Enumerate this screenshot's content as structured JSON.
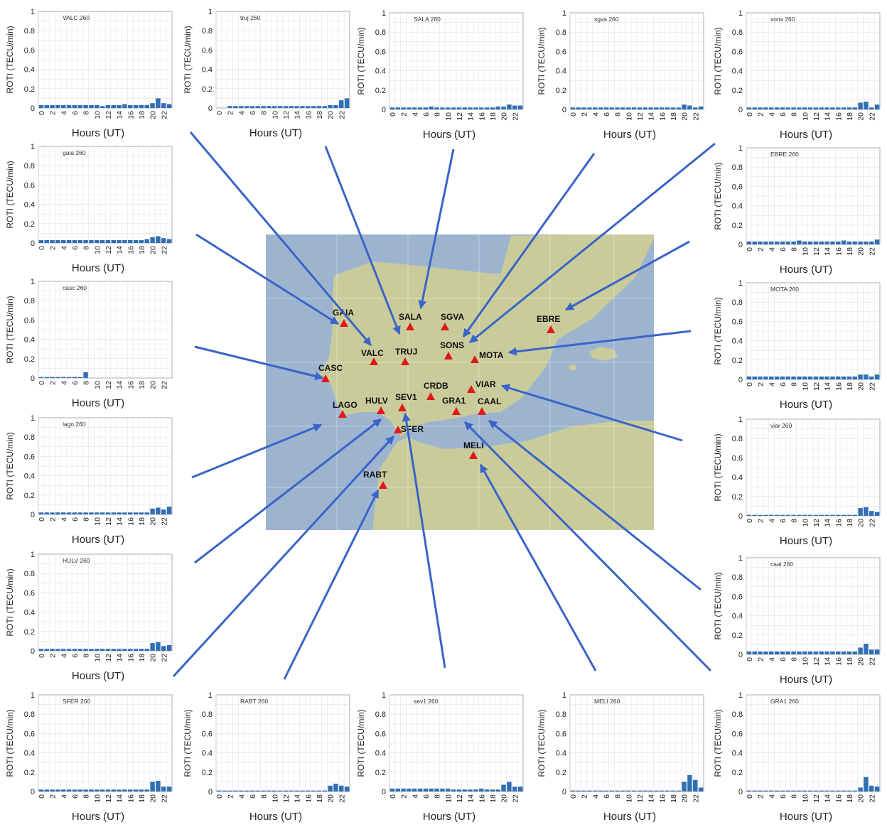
{
  "common": {
    "y_axis_label": "ROTI (TECU/min)",
    "x_axis_label": "Hours (UT)",
    "y_ticks": [
      "0",
      "0.2",
      "0.4",
      "0.6",
      "0.8",
      "1"
    ],
    "x_ticks": [
      "0",
      "2",
      "4",
      "6",
      "8",
      "10",
      "12",
      "14",
      "16",
      "18",
      "20",
      "22"
    ],
    "bar_color": "#2f6fb5"
  },
  "map": {
    "sea_color": "#9db4cf",
    "land_color": "#c9cc9a",
    "marker_color": "#e11919",
    "stations": [
      {
        "code": "GAIA"
      },
      {
        "code": "SALA"
      },
      {
        "code": "SGVA"
      },
      {
        "code": "EBRE"
      },
      {
        "code": "VALC"
      },
      {
        "code": "TRUJ"
      },
      {
        "code": "SONS"
      },
      {
        "code": "MOTA"
      },
      {
        "code": "CASC"
      },
      {
        "code": "CRDB"
      },
      {
        "code": "VIAR"
      },
      {
        "code": "LAGO"
      },
      {
        "code": "HULV"
      },
      {
        "code": "SEV1"
      },
      {
        "code": "GRA1"
      },
      {
        "code": "CAAL"
      },
      {
        "code": "SFER"
      },
      {
        "code": "MELI"
      },
      {
        "code": "RABT"
      }
    ]
  },
  "chart_data": [
    {
      "type": "bar",
      "title": "VALC 260",
      "ylim": [
        0,
        1
      ],
      "xlim": [
        0,
        23
      ],
      "x": [
        0,
        1,
        2,
        3,
        4,
        5,
        6,
        7,
        8,
        9,
        10,
        11,
        12,
        13,
        14,
        15,
        16,
        17,
        18,
        19,
        20,
        21,
        22,
        23
      ],
      "values": [
        0.03,
        0.03,
        0.03,
        0.03,
        0.03,
        0.03,
        0.03,
        0.03,
        0.03,
        0.03,
        0.03,
        0.02,
        0.03,
        0.03,
        0.03,
        0.04,
        0.03,
        0.03,
        0.03,
        0.03,
        0.05,
        0.1,
        0.05,
        0.04
      ]
    },
    {
      "type": "bar",
      "title": "truj 260",
      "ylim": [
        0,
        1
      ],
      "xlim": [
        0,
        23
      ],
      "x": [
        0,
        1,
        2,
        3,
        4,
        5,
        6,
        7,
        8,
        9,
        10,
        11,
        12,
        13,
        14,
        15,
        16,
        17,
        18,
        19,
        20,
        21,
        22,
        23
      ],
      "values": [
        0.0,
        0.0,
        0.02,
        0.02,
        0.02,
        0.02,
        0.02,
        0.02,
        0.02,
        0.02,
        0.02,
        0.02,
        0.02,
        0.02,
        0.02,
        0.02,
        0.02,
        0.02,
        0.02,
        0.02,
        0.03,
        0.03,
        0.08,
        0.1
      ]
    },
    {
      "type": "bar",
      "title": "SALA 260",
      "ylim": [
        0,
        1
      ],
      "xlim": [
        0,
        23
      ],
      "x": [
        0,
        1,
        2,
        3,
        4,
        5,
        6,
        7,
        8,
        9,
        10,
        11,
        12,
        13,
        14,
        15,
        16,
        17,
        18,
        19,
        20,
        21,
        22,
        23
      ],
      "values": [
        0.02,
        0.02,
        0.02,
        0.02,
        0.02,
        0.02,
        0.02,
        0.03,
        0.02,
        0.02,
        0.02,
        0.02,
        0.02,
        0.02,
        0.02,
        0.02,
        0.02,
        0.02,
        0.02,
        0.03,
        0.03,
        0.05,
        0.04,
        0.04
      ]
    },
    {
      "type": "bar",
      "title": "sgva 260",
      "ylim": [
        0,
        1
      ],
      "xlim": [
        0,
        23
      ],
      "x": [
        0,
        1,
        2,
        3,
        4,
        5,
        6,
        7,
        8,
        9,
        10,
        11,
        12,
        13,
        14,
        15,
        16,
        17,
        18,
        19,
        20,
        21,
        22,
        23
      ],
      "values": [
        0.02,
        0.02,
        0.02,
        0.02,
        0.02,
        0.02,
        0.02,
        0.02,
        0.02,
        0.02,
        0.02,
        0.02,
        0.02,
        0.02,
        0.02,
        0.02,
        0.02,
        0.02,
        0.02,
        0.02,
        0.05,
        0.04,
        0.02,
        0.03
      ]
    },
    {
      "type": "bar",
      "title": "sons 260",
      "ylim": [
        0,
        1
      ],
      "xlim": [
        0,
        23
      ],
      "x": [
        0,
        1,
        2,
        3,
        4,
        5,
        6,
        7,
        8,
        9,
        10,
        11,
        12,
        13,
        14,
        15,
        16,
        17,
        18,
        19,
        20,
        21,
        22,
        23
      ],
      "values": [
        0.02,
        0.02,
        0.02,
        0.02,
        0.02,
        0.02,
        0.02,
        0.02,
        0.02,
        0.02,
        0.02,
        0.02,
        0.02,
        0.02,
        0.02,
        0.02,
        0.02,
        0.02,
        0.02,
        0.02,
        0.07,
        0.08,
        0.02,
        0.05
      ]
    },
    {
      "type": "bar",
      "title": "gaia 260",
      "ylim": [
        0,
        1
      ],
      "xlim": [
        0,
        23
      ],
      "x": [
        0,
        1,
        2,
        3,
        4,
        5,
        6,
        7,
        8,
        9,
        10,
        11,
        12,
        13,
        14,
        15,
        16,
        17,
        18,
        19,
        20,
        21,
        22,
        23
      ],
      "values": [
        0.03,
        0.03,
        0.03,
        0.03,
        0.03,
        0.03,
        0.03,
        0.03,
        0.03,
        0.03,
        0.03,
        0.03,
        0.03,
        0.03,
        0.03,
        0.03,
        0.03,
        0.03,
        0.03,
        0.04,
        0.06,
        0.07,
        0.05,
        0.04
      ]
    },
    {
      "type": "bar",
      "title": "EBRE 260",
      "ylim": [
        0,
        1
      ],
      "xlim": [
        0,
        23
      ],
      "x": [
        0,
        1,
        2,
        3,
        4,
        5,
        6,
        7,
        8,
        9,
        10,
        11,
        12,
        13,
        14,
        15,
        16,
        17,
        18,
        19,
        20,
        21,
        22,
        23
      ],
      "values": [
        0.03,
        0.03,
        0.03,
        0.03,
        0.03,
        0.03,
        0.03,
        0.03,
        0.03,
        0.04,
        0.03,
        0.03,
        0.03,
        0.03,
        0.03,
        0.03,
        0.03,
        0.04,
        0.03,
        0.03,
        0.03,
        0.03,
        0.03,
        0.05
      ]
    },
    {
      "type": "bar",
      "title": "casc 260",
      "ylim": [
        0,
        1
      ],
      "xlim": [
        0,
        23
      ],
      "x": [
        0,
        1,
        2,
        3,
        4,
        5,
        6,
        7,
        8
      ],
      "values": [
        0.01,
        0.01,
        0.01,
        0.01,
        0.01,
        0.01,
        0.01,
        0.01,
        0.06
      ]
    },
    {
      "type": "bar",
      "title": "MOTA 260",
      "ylim": [
        0,
        1
      ],
      "xlim": [
        0,
        23
      ],
      "x": [
        0,
        1,
        2,
        3,
        4,
        5,
        6,
        7,
        8,
        9,
        10,
        11,
        12,
        13,
        14,
        15,
        16,
        17,
        18,
        19,
        20,
        21,
        22,
        23
      ],
      "values": [
        0.03,
        0.03,
        0.03,
        0.03,
        0.03,
        0.03,
        0.03,
        0.03,
        0.03,
        0.03,
        0.03,
        0.03,
        0.03,
        0.03,
        0.03,
        0.03,
        0.03,
        0.03,
        0.03,
        0.03,
        0.05,
        0.05,
        0.03,
        0.05
      ]
    },
    {
      "type": "bar",
      "title": "lago 260",
      "ylim": [
        0,
        1
      ],
      "xlim": [
        0,
        23
      ],
      "x": [
        0,
        1,
        2,
        3,
        4,
        5,
        6,
        7,
        8,
        9,
        10,
        11,
        12,
        13,
        14,
        15,
        16,
        17,
        18,
        19,
        20,
        21,
        22,
        23
      ],
      "values": [
        0.02,
        0.02,
        0.02,
        0.02,
        0.02,
        0.02,
        0.02,
        0.02,
        0.02,
        0.02,
        0.02,
        0.02,
        0.02,
        0.02,
        0.02,
        0.02,
        0.02,
        0.02,
        0.02,
        0.02,
        0.06,
        0.07,
        0.05,
        0.08
      ]
    },
    {
      "type": "bar",
      "title": "viar 260",
      "ylim": [
        0,
        1
      ],
      "xlim": [
        0,
        23
      ],
      "x": [
        0,
        1,
        2,
        3,
        4,
        5,
        6,
        7,
        8,
        9,
        10,
        11,
        12,
        13,
        14,
        15,
        16,
        17,
        18,
        19,
        20,
        21,
        22,
        23
      ],
      "values": [
        0.01,
        0.01,
        0.01,
        0.01,
        0.01,
        0.01,
        0.01,
        0.01,
        0.01,
        0.01,
        0.01,
        0.01,
        0.01,
        0.01,
        0.01,
        0.01,
        0.01,
        0.01,
        0.01,
        0.01,
        0.08,
        0.09,
        0.05,
        0.04
      ]
    },
    {
      "type": "bar",
      "title": "HULV 260",
      "ylim": [
        0,
        1
      ],
      "xlim": [
        0,
        23
      ],
      "x": [
        0,
        1,
        2,
        3,
        4,
        5,
        6,
        7,
        8,
        9,
        10,
        11,
        12,
        13,
        14,
        15,
        16,
        17,
        18,
        19,
        20,
        21,
        22,
        23
      ],
      "values": [
        0.02,
        0.02,
        0.02,
        0.02,
        0.02,
        0.02,
        0.02,
        0.02,
        0.02,
        0.02,
        0.02,
        0.02,
        0.02,
        0.02,
        0.02,
        0.02,
        0.02,
        0.02,
        0.02,
        0.02,
        0.08,
        0.09,
        0.05,
        0.06
      ]
    },
    {
      "type": "bar",
      "title": "caal 260",
      "ylim": [
        0,
        1
      ],
      "xlim": [
        0,
        23
      ],
      "x": [
        0,
        1,
        2,
        3,
        4,
        5,
        6,
        7,
        8,
        9,
        10,
        11,
        12,
        13,
        14,
        15,
        16,
        17,
        18,
        19,
        20,
        21,
        22,
        23
      ],
      "values": [
        0.03,
        0.03,
        0.03,
        0.03,
        0.03,
        0.03,
        0.03,
        0.03,
        0.03,
        0.03,
        0.03,
        0.03,
        0.03,
        0.03,
        0.03,
        0.03,
        0.03,
        0.03,
        0.03,
        0.03,
        0.07,
        0.11,
        0.05,
        0.05
      ]
    },
    {
      "type": "bar",
      "title": "SFER 260",
      "ylim": [
        0,
        1
      ],
      "xlim": [
        0,
        23
      ],
      "x": [
        0,
        1,
        2,
        3,
        4,
        5,
        6,
        7,
        8,
        9,
        10,
        11,
        12,
        13,
        14,
        15,
        16,
        17,
        18,
        19,
        20,
        21,
        22,
        23
      ],
      "values": [
        0.02,
        0.02,
        0.02,
        0.02,
        0.02,
        0.02,
        0.02,
        0.02,
        0.02,
        0.02,
        0.02,
        0.02,
        0.02,
        0.02,
        0.02,
        0.02,
        0.02,
        0.02,
        0.02,
        0.02,
        0.1,
        0.11,
        0.05,
        0.05
      ]
    },
    {
      "type": "bar",
      "title": "RABT 260",
      "ylim": [
        0,
        1
      ],
      "xlim": [
        0,
        23
      ],
      "x": [
        0,
        1,
        2,
        3,
        4,
        5,
        6,
        7,
        8,
        9,
        10,
        11,
        12,
        13,
        14,
        15,
        16,
        17,
        18,
        19,
        20,
        21,
        22,
        23
      ],
      "values": [
        0.01,
        0.01,
        0.01,
        0.01,
        0.01,
        0.01,
        0.01,
        0.01,
        0.01,
        0.01,
        0.01,
        0.01,
        0.01,
        0.01,
        0.01,
        0.01,
        0.01,
        0.01,
        0.01,
        0.01,
        0.06,
        0.08,
        0.06,
        0.05
      ]
    },
    {
      "type": "bar",
      "title": "sev1 260",
      "ylim": [
        0,
        1
      ],
      "xlim": [
        0,
        23
      ],
      "x": [
        0,
        1,
        2,
        3,
        4,
        5,
        6,
        7,
        8,
        9,
        10,
        11,
        12,
        13,
        14,
        15,
        16,
        17,
        18,
        19,
        20,
        21,
        22,
        23
      ],
      "values": [
        0.03,
        0.03,
        0.03,
        0.03,
        0.03,
        0.03,
        0.03,
        0.03,
        0.03,
        0.03,
        0.03,
        0.02,
        0.02,
        0.02,
        0.02,
        0.02,
        0.03,
        0.02,
        0.02,
        0.02,
        0.07,
        0.1,
        0.05,
        0.05
      ]
    },
    {
      "type": "bar",
      "title": "MELI 260",
      "ylim": [
        0,
        1
      ],
      "xlim": [
        0,
        23
      ],
      "x": [
        0,
        1,
        2,
        3,
        4,
        5,
        6,
        7,
        8,
        9,
        10,
        11,
        12,
        13,
        14,
        15,
        16,
        17,
        18,
        19,
        20,
        21,
        22,
        23
      ],
      "values": [
        0.01,
        0.01,
        0.01,
        0.01,
        0.01,
        0.01,
        0.01,
        0.01,
        0.01,
        0.01,
        0.01,
        0.01,
        0.01,
        0.01,
        0.01,
        0.01,
        0.01,
        0.01,
        0.01,
        0.01,
        0.1,
        0.17,
        0.12,
        0.04
      ]
    },
    {
      "type": "bar",
      "title": "GRA1 260",
      "ylim": [
        0,
        1
      ],
      "xlim": [
        0,
        23
      ],
      "x": [
        0,
        1,
        2,
        3,
        4,
        5,
        6,
        7,
        8,
        9,
        10,
        11,
        12,
        13,
        14,
        15,
        16,
        17,
        18,
        19,
        20,
        21,
        22,
        23
      ],
      "values": [
        0.01,
        0.01,
        0.01,
        0.01,
        0.01,
        0.01,
        0.01,
        0.01,
        0.01,
        0.01,
        0.01,
        0.01,
        0.01,
        0.01,
        0.01,
        0.01,
        0.01,
        0.01,
        0.01,
        0.01,
        0.04,
        0.15,
        0.06,
        0.05
      ]
    }
  ]
}
